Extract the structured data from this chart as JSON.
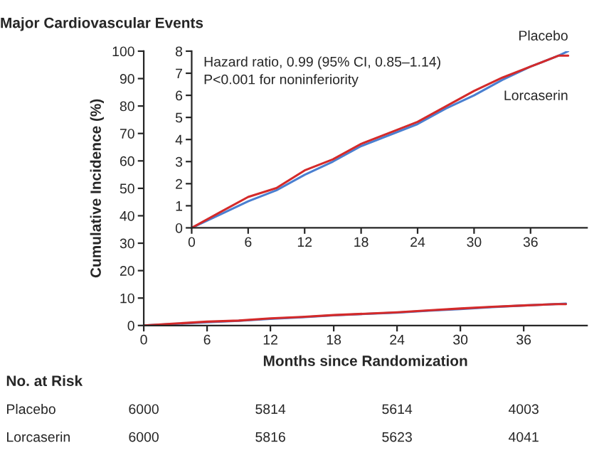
{
  "chart_data": [
    {
      "type": "line",
      "title": "Major Cardiovascular Events",
      "xlabel": "Months since Randomization",
      "ylabel": "Cumulative Incidence (%)",
      "x": [
        0,
        3,
        6,
        9,
        12,
        15,
        18,
        21,
        24,
        27,
        30,
        33,
        36,
        39,
        40
      ],
      "series": [
        {
          "color": "#4a7fd0",
          "values": [
            0,
            0.6,
            1.2,
            1.7,
            2.4,
            3.0,
            3.7,
            4.2,
            4.7,
            5.4,
            6.0,
            6.7,
            7.3,
            7.8,
            8.0
          ]
        },
        {
          "color": "#d42a2a",
          "values": [
            0,
            0.7,
            1.4,
            1.8,
            2.6,
            3.1,
            3.8,
            4.3,
            4.8,
            5.5,
            6.2,
            6.8,
            7.3,
            7.8,
            7.8
          ]
        }
      ],
      "xlim": [
        0,
        42
      ],
      "xticks": [
        0,
        6,
        12,
        18,
        24,
        30,
        36
      ],
      "ylim": [
        0,
        100
      ],
      "yticks": [
        0,
        10,
        20,
        30,
        40,
        50,
        60,
        70,
        80,
        90,
        100
      ],
      "grid": false,
      "legend": false,
      "annotations": [
        "No. at Risk",
        "Placebo",
        "Lorcaserin",
        "6000",
        "5814",
        "5614",
        "4003",
        "6000",
        "5816",
        "5623",
        "4041"
      ]
    },
    {
      "type": "line",
      "x": [
        0,
        3,
        6,
        9,
        12,
        15,
        18,
        21,
        24,
        27,
        30,
        33,
        36,
        39,
        40
      ],
      "series": [
        {
          "name": "Placebo",
          "color": "#4a7fd0",
          "values": [
            0,
            0.6,
            1.2,
            1.7,
            2.4,
            3.0,
            3.7,
            4.2,
            4.7,
            5.4,
            6.0,
            6.7,
            7.3,
            7.8,
            8.0
          ]
        },
        {
          "name": "Lorcaserin",
          "color": "#d42a2a",
          "values": [
            0,
            0.7,
            1.4,
            1.8,
            2.6,
            3.1,
            3.8,
            4.3,
            4.8,
            5.5,
            6.2,
            6.8,
            7.3,
            7.8,
            7.8
          ]
        }
      ],
      "xlim": [
        0,
        42
      ],
      "xticks": [
        0,
        6,
        12,
        18,
        24,
        30,
        36
      ],
      "ylim": [
        0,
        8
      ],
      "yticks": [
        0,
        1,
        2,
        3,
        4,
        5,
        6,
        7,
        8
      ],
      "grid": false,
      "legend": false,
      "annotations": [
        "Hazard ratio, 0.99 (95% CI, 0.85–1.14)",
        "P<0.001 for noninferiority"
      ]
    }
  ]
}
